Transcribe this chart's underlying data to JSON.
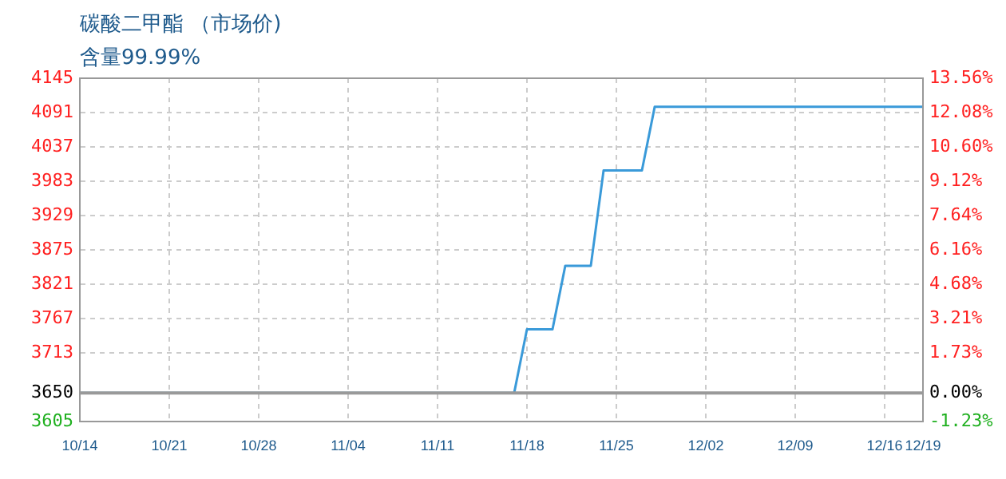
{
  "chart_data": {
    "type": "line",
    "title": "碳酸二甲酯 （市场价)",
    "subtitle": "含量99.99%",
    "x": [
      "--10-14",
      "--11-17",
      "--11-18",
      "--11-20",
      "--11-21",
      "--11-23",
      "--11-24",
      "--11-27",
      "--11-28",
      "--12-19"
    ],
    "series": [
      {
        "color": "#3a9ad9",
        "values": [
          3650,
          3650,
          3750,
          3750,
          3850,
          3850,
          4000,
          4000,
          4100,
          4100
        ]
      }
    ],
    "xlim": [
      "--10-14",
      "--12-19"
    ],
    "xticks": [
      {
        "value": "--10-14",
        "label": "10/14"
      },
      {
        "value": "--10-21",
        "label": "10/21"
      },
      {
        "value": "--10-28",
        "label": "10/28"
      },
      {
        "value": "--11-04",
        "label": "11/04"
      },
      {
        "value": "--11-11",
        "label": "11/11"
      },
      {
        "value": "--11-18",
        "label": "11/18"
      },
      {
        "value": "--11-25",
        "label": "11/25"
      },
      {
        "value": "--12-02",
        "label": "12/02"
      },
      {
        "value": "--12-09",
        "label": "12/09"
      },
      {
        "value": "--12-16",
        "label": "12/16"
      },
      {
        "value": "--12-19",
        "label": "12/19"
      }
    ],
    "ylim": [
      3605,
      4145
    ],
    "yticks": [
      3605,
      3650,
      3713,
      3767,
      3821,
      3875,
      3929,
      3983,
      4037,
      4091,
      4145
    ],
    "y2lim": [
      -1.23,
      13.56
    ],
    "y2ticks": [
      {
        "value": -1.23,
        "label": "-1.23%"
      },
      {
        "value": 0,
        "label": "0.00%"
      },
      {
        "value": 1.73,
        "label": "1.73%"
      },
      {
        "value": 3.21,
        "label": "3.21%"
      },
      {
        "value": 4.68,
        "label": "4.68%"
      },
      {
        "value": 6.16,
        "label": "6.16%"
      },
      {
        "value": 7.64,
        "label": "7.64%"
      },
      {
        "value": 9.12,
        "label": "9.12%"
      },
      {
        "value": 10.6,
        "label": "10.60%"
      },
      {
        "value": 12.08,
        "label": "12.08%"
      },
      {
        "value": 13.56,
        "label": "13.56%"
      }
    ],
    "ref_lines": [
      {
        "axis": "y",
        "value": 3650,
        "color": "#999999"
      }
    ],
    "grid": true,
    "marker": "none",
    "line_style": "solid"
  }
}
